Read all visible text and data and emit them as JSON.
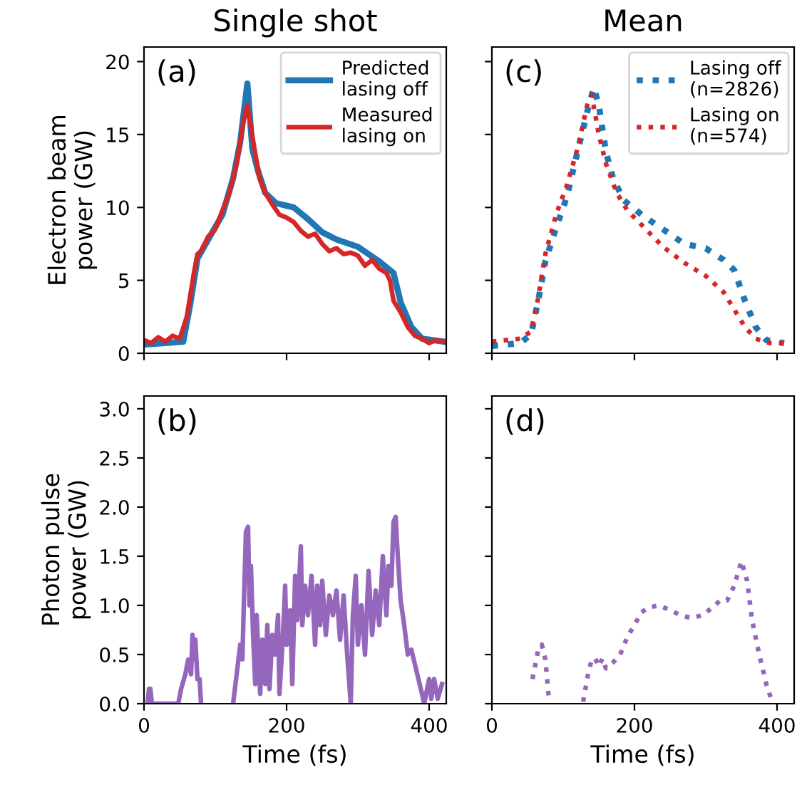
{
  "chart_data": [
    {
      "type": "line",
      "title": "Single shot",
      "ylabel": "Electron beam\npower (GW)",
      "annotations": [
        "(a)"
      ],
      "xlim": [
        0,
        424
      ],
      "ylim": [
        0,
        21
      ],
      "xticks": [
        0,
        200,
        400
      ],
      "yticks": [
        0,
        5,
        10,
        15,
        20
      ],
      "tick_labels": "y",
      "legend": "top right",
      "grid": false,
      "line_style": "solid",
      "series": [
        {
          "name": "Predicted\nlasing off",
          "color": "#1f77b4",
          "x": [
            0,
            30,
            55,
            65,
            75,
            90,
            110,
            125,
            135,
            145,
            152,
            160,
            170,
            185,
            210,
            230,
            250,
            270,
            300,
            330,
            350,
            360,
            375,
            390,
            420
          ],
          "values": [
            0.6,
            0.7,
            0.8,
            3.4,
            6.5,
            7.8,
            9.5,
            12,
            14.5,
            18.5,
            14,
            12.5,
            11,
            10.3,
            10,
            9.2,
            8.3,
            7.8,
            7.3,
            6.3,
            5.5,
            3.5,
            1.8,
            1,
            0.8
          ]
        },
        {
          "name": "Measured\nlasing on",
          "color": "#d62728",
          "x": [
            0,
            10,
            20,
            30,
            40,
            50,
            60,
            70,
            75,
            80,
            90,
            100,
            110,
            120,
            130,
            140,
            145,
            150,
            155,
            162,
            170,
            180,
            190,
            200,
            210,
            220,
            230,
            240,
            250,
            260,
            270,
            280,
            290,
            300,
            310,
            320,
            330,
            340,
            345,
            350,
            360,
            370,
            380,
            390,
            400,
            410,
            420
          ],
          "values": [
            0.9,
            0.7,
            1.1,
            0.8,
            1.2,
            1.0,
            2.5,
            5.5,
            6.8,
            7.0,
            8.0,
            8.5,
            9.8,
            11,
            13,
            16,
            17,
            15.5,
            14,
            12,
            11,
            10.2,
            9.5,
            9.3,
            9.0,
            8.4,
            8.0,
            8.2,
            7.5,
            7.0,
            7.2,
            6.8,
            6.9,
            6.7,
            6.0,
            6.4,
            5.8,
            5.5,
            5.0,
            3.6,
            2.8,
            1.8,
            1.2,
            1.0,
            0.7,
            0.9,
            0.8
          ]
        }
      ]
    },
    {
      "type": "line",
      "title": "Mean",
      "annotations": [
        "(c)"
      ],
      "xlim": [
        0,
        424
      ],
      "ylim": [
        0,
        21
      ],
      "xticks": [
        0,
        200,
        400
      ],
      "yticks": [
        0,
        5,
        10,
        15,
        20
      ],
      "tick_labels": false,
      "legend": "top right",
      "grid": false,
      "line_style": "dotted",
      "series": [
        {
          "name": "Lasing off\n(n=2826)",
          "color": "#1f77b4",
          "x": [
            0,
            40,
            55,
            65,
            75,
            90,
            105,
            120,
            135,
            143,
            150,
            160,
            170,
            185,
            210,
            240,
            270,
            300,
            325,
            340,
            355,
            370,
            385,
            410
          ],
          "values": [
            0.5,
            0.7,
            1.3,
            3.6,
            6.3,
            8.6,
            10.7,
            13.8,
            16.8,
            18.2,
            17,
            13.8,
            12,
            10.5,
            9.5,
            8.5,
            7.5,
            7.2,
            6.4,
            5.7,
            3.6,
            1.8,
            0.9,
            0.7
          ]
        },
        {
          "name": "Lasing on\n(n=574)",
          "color": "#d62728",
          "x": [
            0,
            40,
            55,
            65,
            75,
            90,
            105,
            120,
            135,
            140,
            150,
            160,
            175,
            190,
            210,
            240,
            270,
            300,
            325,
            340,
            355,
            370,
            390,
            410
          ],
          "values": [
            0.8,
            1.0,
            1.5,
            3.8,
            6.8,
            9.5,
            11.5,
            14,
            17.3,
            17.7,
            15,
            13,
            11,
            9.8,
            8.8,
            7.3,
            6.2,
            5.3,
            4.2,
            3.0,
            1.8,
            1.0,
            0.7,
            0.7
          ]
        }
      ]
    },
    {
      "type": "line",
      "xlabel": "Time (fs)",
      "ylabel": "Photon pulse\npower (GW)",
      "annotations": [
        "(b)"
      ],
      "xlim": [
        0,
        424
      ],
      "ylim": [
        0,
        3.13
      ],
      "xticks": [
        0,
        200,
        400
      ],
      "yticks": [
        {
          "value": 0,
          "label": "0.0"
        },
        {
          "value": 0.5,
          "label": "0.5"
        },
        {
          "value": 1,
          "label": "1.0"
        },
        {
          "value": 1.5,
          "label": "1.5"
        },
        {
          "value": 2,
          "label": "2.0"
        },
        {
          "value": 2.5,
          "label": "2.5"
        },
        {
          "value": 3,
          "label": "3.0"
        }
      ],
      "grid": false,
      "line_style": "solid",
      "series": [
        {
          "color": "#9467bd",
          "x": [
            5,
            7,
            9,
            11,
            48,
            52,
            58,
            62,
            66,
            68,
            70,
            72,
            75,
            78,
            80,
            82,
            125,
            130,
            135,
            138,
            140,
            143,
            146,
            148,
            150,
            153,
            156,
            158,
            160,
            163,
            166,
            170,
            173,
            176,
            180,
            184,
            188,
            190,
            195,
            198,
            200,
            205,
            208,
            212,
            215,
            220,
            222,
            226,
            230,
            235,
            240,
            243,
            247,
            250,
            255,
            260,
            265,
            270,
            275,
            280,
            285,
            290,
            293,
            297,
            300,
            305,
            310,
            315,
            320,
            325,
            330,
            335,
            340,
            343,
            347,
            350,
            353,
            356,
            360,
            365,
            370,
            375,
            380,
            385,
            390,
            393,
            400,
            403,
            407,
            412,
            418
          ],
          "values": [
            0,
            0.15,
            0.15,
            0,
            0,
            0.15,
            0.3,
            0.45,
            0.3,
            0.7,
            0.45,
            0.65,
            0.25,
            0.25,
            0,
            null,
            0,
            0.3,
            0.6,
            0.45,
            1.0,
            1.75,
            1.8,
            1.0,
            1.4,
            0.7,
            0.2,
            0.9,
            0.6,
            0.1,
            0.65,
            0.2,
            0.8,
            0.15,
            0.7,
            0.5,
            0.9,
            0.1,
            0.7,
            1.2,
            0.6,
            0.95,
            0.2,
            1.3,
            0.85,
            1.6,
            0.8,
            1.2,
            0.9,
            1.3,
            0.6,
            1.2,
            0.8,
            1.25,
            0.7,
            1.1,
            0.9,
            1.15,
            0.65,
            1.1,
            0.5,
            0,
            0.9,
            1.3,
            0.6,
            1.0,
            0.5,
            1.35,
            0.7,
            1.15,
            0.8,
            1.5,
            0.9,
            1.4,
            1.2,
            1.85,
            1.9,
            1.5,
            1.05,
            0.8,
            0.5,
            0.55,
            0.4,
            0.25,
            0.1,
            0,
            0.25,
            0.05,
            0.25,
            0.05,
            0.2
          ]
        }
      ]
    },
    {
      "type": "line",
      "xlabel": "Time (fs)",
      "annotations": [
        "(d)"
      ],
      "xlim": [
        0,
        424
      ],
      "ylim": [
        0,
        3.13
      ],
      "xticks": [
        0,
        200,
        400
      ],
      "yticks": [
        0,
        0.5,
        1,
        1.5,
        2,
        2.5,
        3
      ],
      "tick_labels": "x",
      "grid": false,
      "line_style": "dotted",
      "series": [
        {
          "color": "#9467bd",
          "x": [
            57,
            65,
            70,
            75,
            80,
            82,
            128,
            135,
            140,
            145,
            150,
            155,
            160,
            170,
            180,
            190,
            200,
            210,
            220,
            235,
            250,
            265,
            280,
            295,
            310,
            320,
            330,
            340,
            350,
            358,
            365,
            375,
            385,
            393
          ],
          "values": [
            0.25,
            0.55,
            0.6,
            0.45,
            0.05,
            null,
            0.02,
            0.3,
            0.45,
            0.46,
            0.38,
            0.46,
            0.36,
            0.42,
            0.5,
            0.68,
            0.8,
            0.93,
            0.98,
            1.0,
            0.95,
            0.9,
            0.87,
            0.9,
            0.98,
            1.05,
            1.05,
            1.2,
            1.45,
            1.25,
            0.85,
            0.5,
            0.2,
            0.02
          ]
        }
      ]
    }
  ]
}
